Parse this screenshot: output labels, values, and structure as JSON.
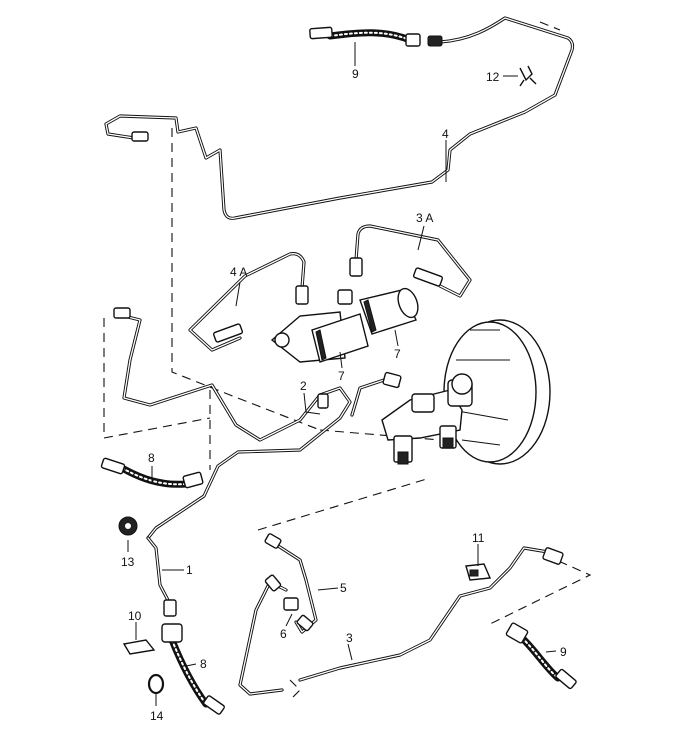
{
  "callouts": {
    "c1": "1",
    "c2": "2",
    "c3": "3",
    "c3a": "3 A",
    "c4": "4",
    "c4a": "4 A",
    "c5": "5",
    "c6": "6",
    "c7a": "7",
    "c7b": "7",
    "c8a": "8",
    "c8b": "8",
    "c9a": "9",
    "c9b": "9",
    "c10": "10",
    "c11": "11",
    "c12": "12",
    "c13": "13",
    "c14": "14"
  }
}
